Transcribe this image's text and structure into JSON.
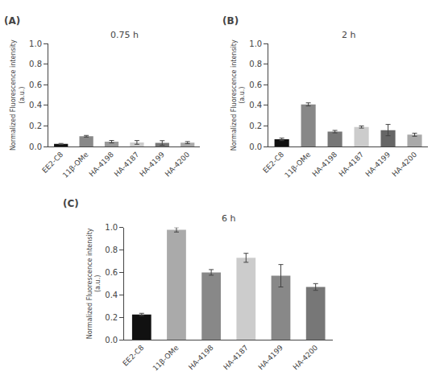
{
  "chart_data": [
    {
      "type": "bar",
      "title": "0.75 h",
      "annotations": [
        "(A)"
      ],
      "categories": [
        "EE2-C8",
        "11β-OMe",
        "HA-4198",
        "HA-4187",
        "HA-4199",
        "HA-4200"
      ],
      "values": [
        0.025,
        0.1,
        0.047,
        0.04,
        0.035,
        0.038
      ],
      "errors": [
        0.005,
        0.008,
        0.012,
        0.018,
        0.022,
        0.01
      ],
      "colors": [
        "#111111",
        "#888888",
        "#999999",
        "#cccccc",
        "#777777",
        "#aaaaaa"
      ],
      "ylabel": "Normalized Fluorescence intensity\n(a.u.)",
      "ylim": [
        0,
        1.0
      ],
      "yticks": [
        {
          "value": 0.0,
          "label": "0.0"
        },
        0.2,
        0.4,
        0.6,
        0.8,
        {
          "value": 1.0,
          "label": "1.0"
        }
      ],
      "grid": false
    },
    {
      "type": "bar",
      "title": "2 h",
      "annotations": [
        "(B)"
      ],
      "categories": [
        "EE2-C8",
        "11β-OMe",
        "HA-4198",
        "HA-4187",
        "HA-4199",
        "HA-4200"
      ],
      "values": [
        0.07,
        0.41,
        0.145,
        0.19,
        0.16,
        0.115
      ],
      "errors": [
        0.012,
        0.015,
        0.012,
        0.01,
        0.055,
        0.015
      ],
      "colors": [
        "#111111",
        "#888888",
        "#777777",
        "#cccccc",
        "#666666",
        "#aaaaaa"
      ],
      "ylabel": "Normalized Fluorescence intensity\n(a.u.)",
      "ylim": [
        0,
        1.0
      ],
      "yticks": [
        {
          "value": 0.0,
          "label": "0.0"
        },
        0.2,
        0.4,
        0.6,
        0.8,
        {
          "value": 1.0,
          "label": "1.0"
        }
      ],
      "grid": false
    },
    {
      "type": "bar",
      "title": "6 h",
      "annotations": [
        "(C)"
      ],
      "categories": [
        "EE2-C8",
        "11β-OMe",
        "HA-4198",
        "HA-4187",
        "HA-4199",
        "HA-4200"
      ],
      "values": [
        0.225,
        0.98,
        0.6,
        0.73,
        0.57,
        0.47
      ],
      "errors": [
        0.01,
        0.02,
        0.025,
        0.04,
        0.1,
        0.03
      ],
      "colors": [
        "#111111",
        "#aaaaaa",
        "#888888",
        "#cccccc",
        "#888888",
        "#777777"
      ],
      "ylabel": "Normalized Fluorescence intensity\n(a.u.)",
      "ylim": [
        0,
        1.0
      ],
      "yticks": [
        {
          "value": 0.0,
          "label": "0.0"
        },
        0.2,
        0.4,
        0.6,
        0.8,
        {
          "value": 1.0,
          "label": "1.0"
        }
      ],
      "grid": false
    }
  ]
}
